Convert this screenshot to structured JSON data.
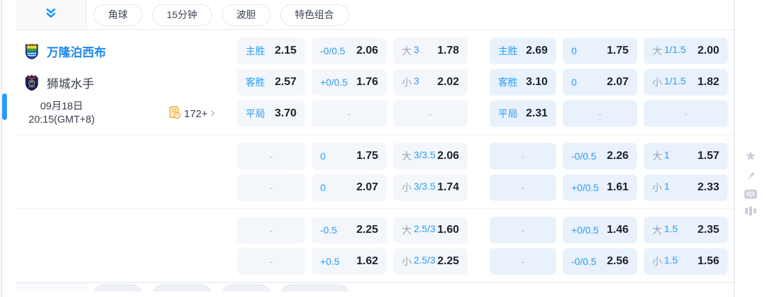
{
  "colors": {
    "accent_blue": "#2196f3",
    "label_blue": "#2b9df5",
    "label_gray": "#9ba3b0",
    "value_text": "#1d212a",
    "cell_bg_left_group": "#f3f6fa",
    "cell_bg_right_group": "#e8f1fc",
    "home_team_blue": "#1f87f2",
    "more_icon_orange": "#f5a623",
    "side_icon_gray": "#c9cfd9"
  },
  "toolbar": {
    "tabs": [
      "角球",
      "15分钟",
      "波胆",
      "特色组合"
    ]
  },
  "match": {
    "home_name": "万隆泊西布",
    "away_name": "狮城水手",
    "date": "09月18日",
    "time": "20:15(GMT+8)",
    "more_odds_count": "172+",
    "more_chevron": "›"
  },
  "empty_dash": "-",
  "odds_blocks": [
    [
      [
        {
          "p": [
            [
              "b",
              "主胜"
            ]
          ],
          "v": "2.15"
        },
        {
          "p": [
            [
              "b",
              "-0/0.5"
            ]
          ],
          "v": "2.06"
        },
        {
          "p": [
            [
              "g",
              "大"
            ],
            [
              "b",
              "3"
            ]
          ],
          "v": "1.78"
        },
        {
          "p": [
            [
              "b",
              "主胜"
            ]
          ],
          "v": "2.69"
        },
        {
          "p": [
            [
              "b",
              "0"
            ]
          ],
          "v": "1.75"
        },
        {
          "p": [
            [
              "g",
              "大"
            ],
            [
              "b",
              "1/1.5"
            ]
          ],
          "v": "2.00"
        }
      ],
      [
        {
          "p": [
            [
              "b",
              "客胜"
            ]
          ],
          "v": "2.57"
        },
        {
          "p": [
            [
              "b",
              "+0/0.5"
            ]
          ],
          "v": "1.76"
        },
        {
          "p": [
            [
              "g",
              "小"
            ],
            [
              "b",
              "3"
            ]
          ],
          "v": "2.02"
        },
        {
          "p": [
            [
              "b",
              "客胜"
            ]
          ],
          "v": "3.10"
        },
        {
          "p": [
            [
              "b",
              "0"
            ]
          ],
          "v": "2.07"
        },
        {
          "p": [
            [
              "g",
              "小"
            ],
            [
              "b",
              "1/1.5"
            ]
          ],
          "v": "1.82"
        }
      ],
      [
        {
          "p": [
            [
              "b",
              "平局"
            ]
          ],
          "v": "3.70"
        },
        {
          "dash": true
        },
        {
          "dash": true
        },
        {
          "p": [
            [
              "b",
              "平局"
            ]
          ],
          "v": "2.31"
        },
        {
          "dash": true
        },
        {
          "dash": true
        }
      ]
    ],
    [
      [
        {
          "dash": true
        },
        {
          "p": [
            [
              "b",
              "0"
            ]
          ],
          "v": "1.75"
        },
        {
          "p": [
            [
              "g",
              "大"
            ],
            [
              "b",
              "3/3.5"
            ]
          ],
          "v": "2.06"
        },
        {
          "dash": true
        },
        {
          "p": [
            [
              "b",
              "-0/0.5"
            ]
          ],
          "v": "2.26"
        },
        {
          "p": [
            [
              "g",
              "大"
            ],
            [
              "b",
              "1"
            ]
          ],
          "v": "1.57"
        }
      ],
      [
        {
          "dash": true
        },
        {
          "p": [
            [
              "b",
              "0"
            ]
          ],
          "v": "2.07"
        },
        {
          "p": [
            [
              "g",
              "小"
            ],
            [
              "b",
              "3/3.5"
            ]
          ],
          "v": "1.74"
        },
        {
          "dash": true
        },
        {
          "p": [
            [
              "b",
              "+0/0.5"
            ]
          ],
          "v": "1.61"
        },
        {
          "p": [
            [
              "g",
              "小"
            ],
            [
              "b",
              "1"
            ]
          ],
          "v": "2.33"
        }
      ]
    ],
    [
      [
        {
          "dash": true
        },
        {
          "p": [
            [
              "b",
              "-0.5"
            ]
          ],
          "v": "2.25"
        },
        {
          "p": [
            [
              "g",
              "大"
            ],
            [
              "b",
              "2.5/3"
            ]
          ],
          "v": "1.60"
        },
        {
          "dash": true
        },
        {
          "p": [
            [
              "b",
              "+0/0.5"
            ]
          ],
          "v": "1.46"
        },
        {
          "p": [
            [
              "g",
              "大"
            ],
            [
              "b",
              "1.5"
            ]
          ],
          "v": "2.35"
        }
      ],
      [
        {
          "dash": true
        },
        {
          "p": [
            [
              "b",
              "+0.5"
            ]
          ],
          "v": "1.62"
        },
        {
          "p": [
            [
              "g",
              "小"
            ],
            [
              "b",
              "2.5/3"
            ]
          ],
          "v": "2.25"
        },
        {
          "dash": true
        },
        {
          "p": [
            [
              "b",
              "-0/0.5"
            ]
          ],
          "v": "2.56"
        },
        {
          "p": [
            [
              "g",
              "小"
            ],
            [
              "b",
              "1.5"
            ]
          ],
          "v": "1.56"
        }
      ]
    ]
  ],
  "side": {
    "odds_toggle_label": "0|1"
  }
}
